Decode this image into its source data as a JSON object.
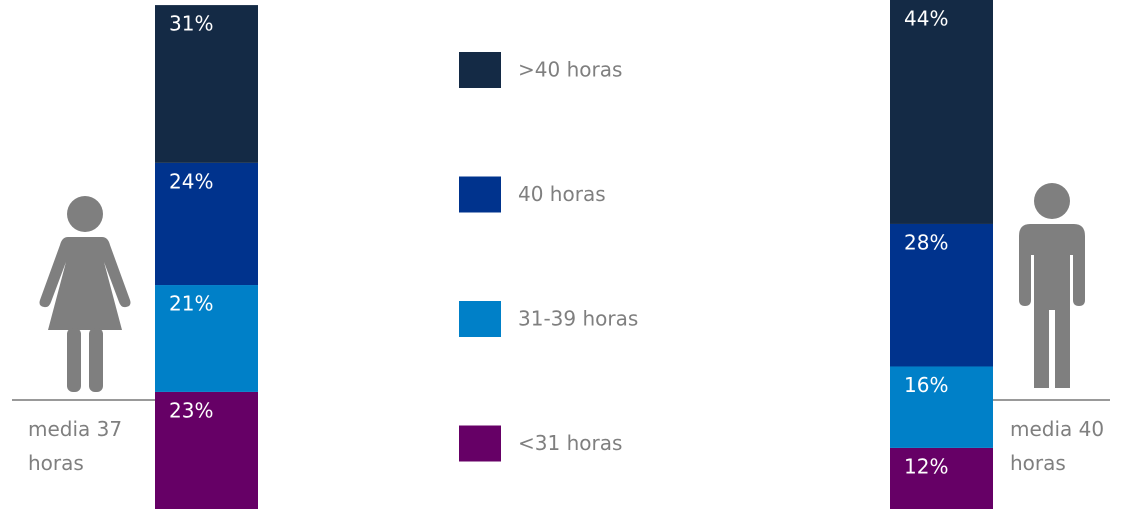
{
  "chart_data": {
    "type": "bar",
    "stacked": true,
    "categories": [
      null,
      null
    ],
    "series": [
      {
        "name": "<31 horas",
        "color": "#660066",
        "values": [
          23,
          12
        ],
        "value_labels": [
          "23%",
          "12%"
        ]
      },
      {
        "name": "31-39 horas",
        "color": "#0080c8",
        "values": [
          21,
          16
        ],
        "value_labels": [
          "21%",
          "16%"
        ]
      },
      {
        "name": "40 horas",
        "color": "#00338d",
        "values": [
          24,
          28
        ],
        "value_labels": [
          "24%",
          "28%"
        ]
      },
      {
        "name": ">40 horas",
        "color": "#142a45",
        "values": [
          31,
          44
        ],
        "value_labels": [
          "31%",
          "44%"
        ]
      }
    ],
    "annotations": [
      "media 37 horas",
      "media 40 horas"
    ]
  }
}
